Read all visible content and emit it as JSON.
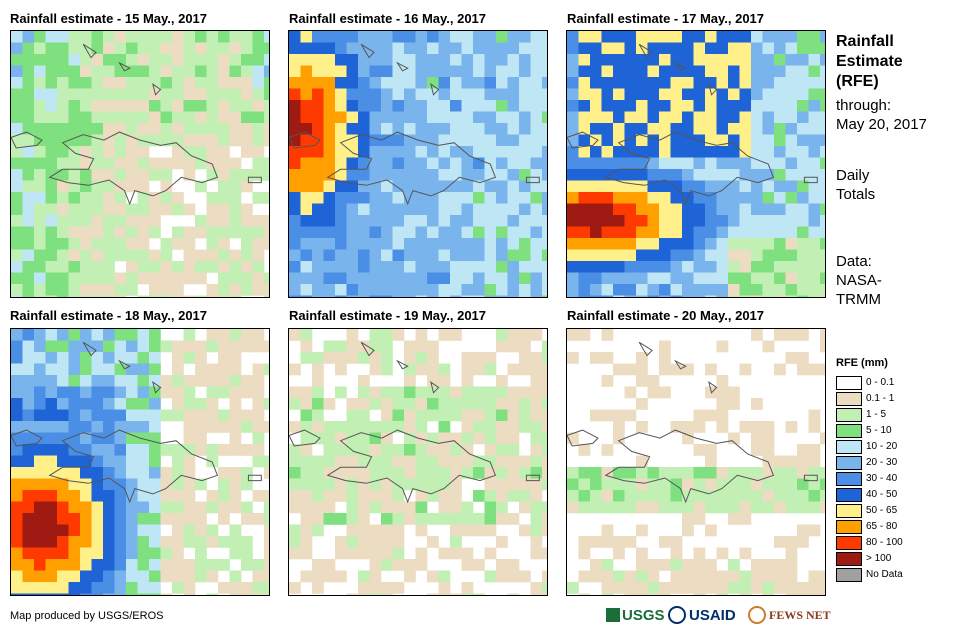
{
  "panels": [
    {
      "title": "Rainfall estimate - 15 May., 2017"
    },
    {
      "title": "Rainfall estimate - 16 May., 2017"
    },
    {
      "title": "Rainfall estimate - 17 May., 2017"
    },
    {
      "title": "Rainfall estimate - 18 May., 2017"
    },
    {
      "title": "Rainfall estimate - 19 May., 2017"
    },
    {
      "title": "Rainfall estimate - 20 May., 2017"
    }
  ],
  "side": {
    "title_line1": "Rainfall",
    "title_line2": "Estimate",
    "title_line3": "(RFE)",
    "through": "through:",
    "date": "May 20, 2017",
    "daily1": "Daily",
    "daily2": "Totals",
    "data1": "Data:",
    "data2": "NASA-",
    "data3": "TRMM"
  },
  "legend": {
    "title": "RFE (mm)",
    "items": [
      {
        "label": "0 - 0.1",
        "color": "#ffffff"
      },
      {
        "label": "0.1 - 1",
        "color": "#ecdcc2"
      },
      {
        "label": "1 - 5",
        "color": "#c2f0b4"
      },
      {
        "label": "5 - 10",
        "color": "#7fe07f"
      },
      {
        "label": "10 - 20",
        "color": "#bfe6f5"
      },
      {
        "label": "20 - 30",
        "color": "#7ab4ec"
      },
      {
        "label": "30 - 40",
        "color": "#4a8ee6"
      },
      {
        "label": "40 - 50",
        "color": "#1e64d6"
      },
      {
        "label": "50 - 65",
        "color": "#fff08a"
      },
      {
        "label": "65 - 80",
        "color": "#ffa000"
      },
      {
        "label": "80 - 100",
        "color": "#ff3a00"
      },
      {
        "label": "> 100",
        "color": "#9e1a12"
      },
      {
        "label": "No Data",
        "color": "#a0a0a0"
      }
    ]
  },
  "footer": {
    "credit": "Map produced by USGS/EROS",
    "logo_usgs": "USGS",
    "logo_usaid": "USAID",
    "logo_fews": "FEWS NET"
  }
}
